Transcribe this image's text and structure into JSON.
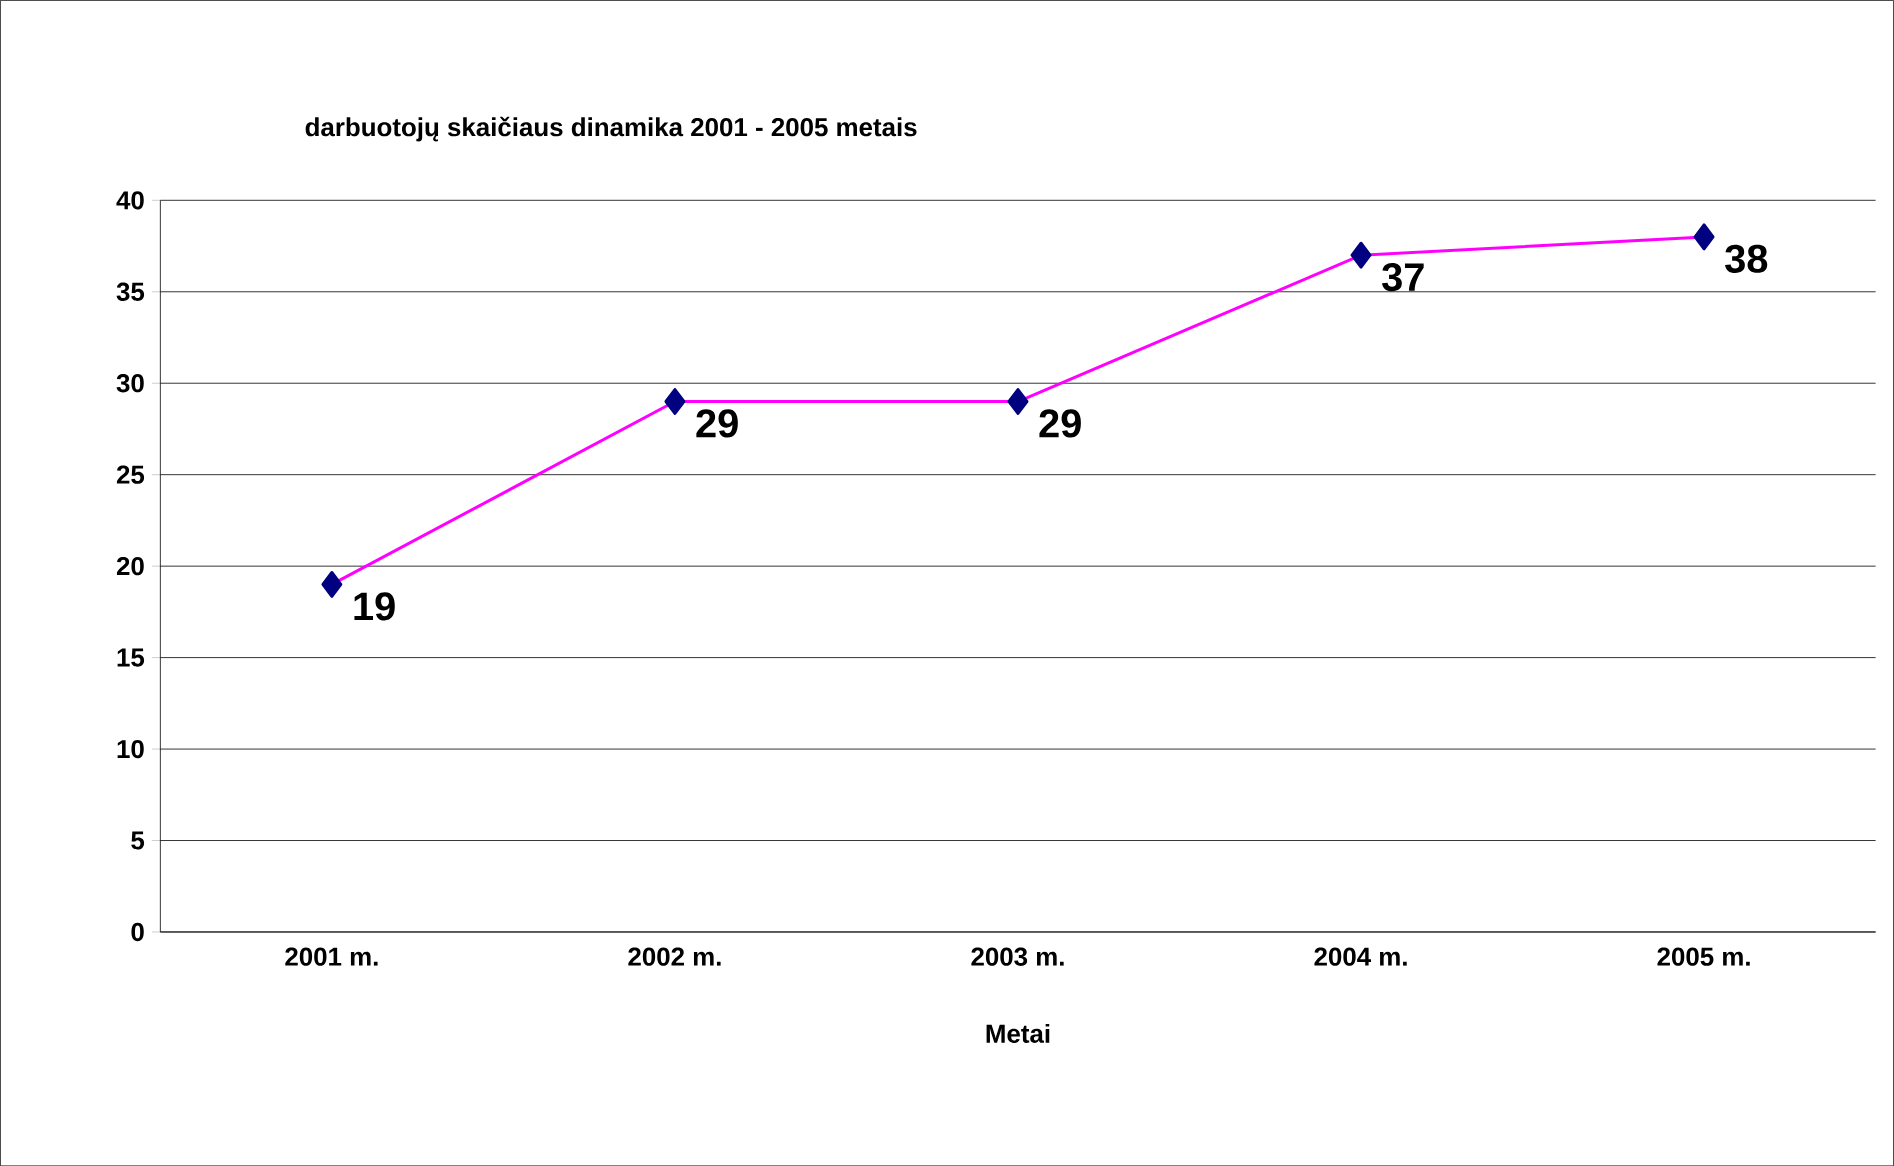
{
  "chart_data": {
    "type": "line",
    "title": "darbuotojų skaičiaus dinamika 2001 - 2005 metais",
    "xlabel": "Metai",
    "categories": [
      "2001 m.",
      "2002 m.",
      "2003 m.",
      "2004 m.",
      "2005 m."
    ],
    "series": [
      {
        "color": "#ff00ff",
        "values": [
          19,
          29,
          29,
          37,
          38
        ]
      }
    ],
    "marker": "diamond",
    "data_labels": true,
    "grid": "y",
    "ylim": [
      0,
      40
    ],
    "yticks": [
      0,
      5,
      10,
      15,
      20,
      25,
      30,
      35,
      40
    ]
  }
}
